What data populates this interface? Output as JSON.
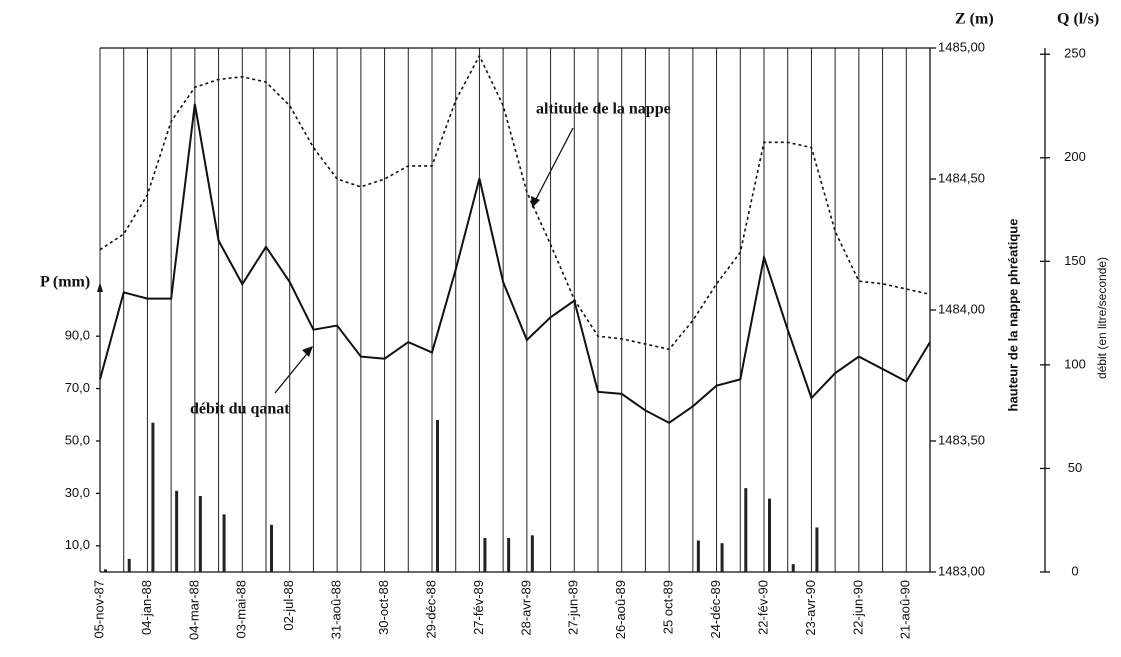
{
  "chart_data": {
    "type": "line",
    "categories": [
      "05-nov-87",
      null,
      "04-jan-88",
      null,
      "04-mar-88",
      null,
      "03-mai-88",
      null,
      "02-jul-88",
      null,
      "31-aoû-88",
      null,
      "30-oct-88",
      null,
      "29-déc-88",
      null,
      "27-fév-89",
      null,
      "28-avr-89",
      null,
      "27-jun-89",
      null,
      "26-aoû-89",
      null,
      "25 oct-89",
      null,
      "24-déc-89",
      null,
      "22-fév-90",
      null,
      "23-avr-90",
      null,
      "22-jun-90",
      null,
      "21-aoû-90",
      null
    ],
    "ylabel": "P (mm)",
    "y2label": "Z (m)",
    "y3label": "Q (l/s)",
    "y2title": "hauteur de la nappe phréatique",
    "y3title": "débit (en litre/seconde)",
    "ylim": [
      0,
      200
    ],
    "yticks": [
      {
        "value": 10,
        "label": "10,0"
      },
      {
        "value": 30,
        "label": "30,0"
      },
      {
        "value": 50,
        "label": "50,0"
      },
      {
        "value": 70,
        "label": "70,0"
      },
      {
        "value": 90,
        "label": "90,0"
      }
    ],
    "y2lim": [
      1483,
      1485
    ],
    "y2ticks": [
      {
        "value": 1483,
        "label": "1483,00"
      },
      {
        "value": 1483.5,
        "label": "1483,50"
      },
      {
        "value": 1484,
        "label": "1484,00"
      },
      {
        "value": 1484.5,
        "label": "1484,50"
      },
      {
        "value": 1485,
        "label": "1485,00"
      }
    ],
    "y3lim": [
      0,
      253
    ],
    "y3ticks": [
      0,
      50,
      100,
      150,
      200,
      250
    ],
    "grid": true,
    "series": [
      {
        "name": "débit du qanat",
        "axis": "y3",
        "style": "solid",
        "color": "#111111",
        "values": [
          93,
          135,
          132,
          132,
          226,
          160,
          139,
          157,
          140,
          117,
          119,
          104,
          103,
          111,
          106,
          146,
          190,
          140,
          112,
          123,
          131,
          87,
          86,
          78,
          72,
          80,
          90,
          93,
          152,
          117,
          84,
          96,
          104,
          98,
          92,
          111
        ]
      },
      {
        "name": "altitude de la nappe",
        "axis": "y2",
        "style": "dotted",
        "color": "#111111",
        "values": [
          1484.23,
          1484.29,
          1484.44,
          1484.72,
          1484.85,
          1484.88,
          1484.89,
          1484.87,
          1484.78,
          1484.62,
          1484.5,
          1484.47,
          1484.5,
          1484.55,
          1484.55,
          1484.8,
          1484.97,
          1484.78,
          1484.45,
          1484.25,
          1484.04,
          1483.9,
          1483.89,
          1483.87,
          1483.85,
          1483.96,
          1484.1,
          1484.22,
          1484.64,
          1484.64,
          1484.62,
          1484.3,
          1484.11,
          1484.1,
          1484.08,
          1484.06
        ]
      },
      {
        "type": "bar",
        "axis": "y",
        "color": "#222222",
        "values": [
          1,
          5,
          57,
          31,
          29,
          22,
          0,
          18,
          0,
          0,
          0,
          0,
          0,
          0,
          58,
          0,
          13,
          13,
          14,
          0,
          0,
          0,
          0,
          0,
          0,
          12,
          11,
          32,
          28,
          3,
          17,
          0,
          0,
          0,
          0,
          0
        ]
      }
    ]
  }
}
